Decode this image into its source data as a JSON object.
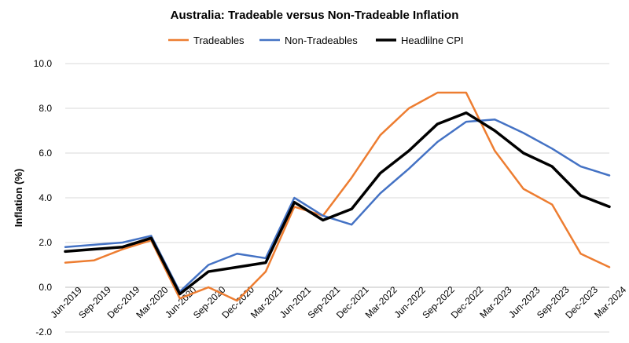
{
  "chart_data": {
    "type": "line",
    "title": "Australia: Tradeable versus Non-Tradeable Inflation",
    "xlabel": "",
    "ylabel": "Inflation (%)",
    "ylim": [
      -2.0,
      10.0
    ],
    "yticks": [
      "-2.0",
      "0.0",
      "2.0",
      "4.0",
      "6.0",
      "8.0",
      "10.0"
    ],
    "ytick_values": [
      -2,
      0,
      2,
      4,
      6,
      8,
      10
    ],
    "grid": true,
    "legend_position": "top-center",
    "categories": [
      "Jun-2019",
      "Sep-2019",
      "Dec-2019",
      "Mar-2020",
      "Jun-2020",
      "Sep-2020",
      "Dec-2020",
      "Mar-2021",
      "Jun-2021",
      "Sep-2021",
      "Dec-2021",
      "Mar-2022",
      "Jun-2022",
      "Sep-2022",
      "Dec-2022",
      "Mar-2023",
      "Jun-2023",
      "Sep-2023",
      "Dec-2023",
      "Mar-2024"
    ],
    "series": [
      {
        "name": "Tradeables",
        "color": "#ED7D31",
        "values": [
          1.1,
          1.2,
          1.7,
          2.1,
          -0.5,
          0.0,
          -0.6,
          0.7,
          3.6,
          3.2,
          4.9,
          6.8,
          8.0,
          8.7,
          8.7,
          6.1,
          4.4,
          3.7,
          1.5,
          0.9
        ]
      },
      {
        "name": "Non-Tradeables",
        "color": "#4472C4",
        "values": [
          1.8,
          1.9,
          2.0,
          2.3,
          -0.2,
          1.0,
          1.5,
          1.3,
          4.0,
          3.2,
          2.8,
          4.2,
          5.3,
          6.5,
          7.4,
          7.5,
          6.9,
          6.2,
          5.4,
          5.0
        ]
      },
      {
        "name": "Headlilne CPI",
        "color": "#000000",
        "values": [
          1.6,
          1.7,
          1.8,
          2.2,
          -0.3,
          0.7,
          0.9,
          1.1,
          3.8,
          3.0,
          3.5,
          5.1,
          6.1,
          7.3,
          7.8,
          7.0,
          6.0,
          5.4,
          4.1,
          3.6
        ]
      }
    ]
  }
}
